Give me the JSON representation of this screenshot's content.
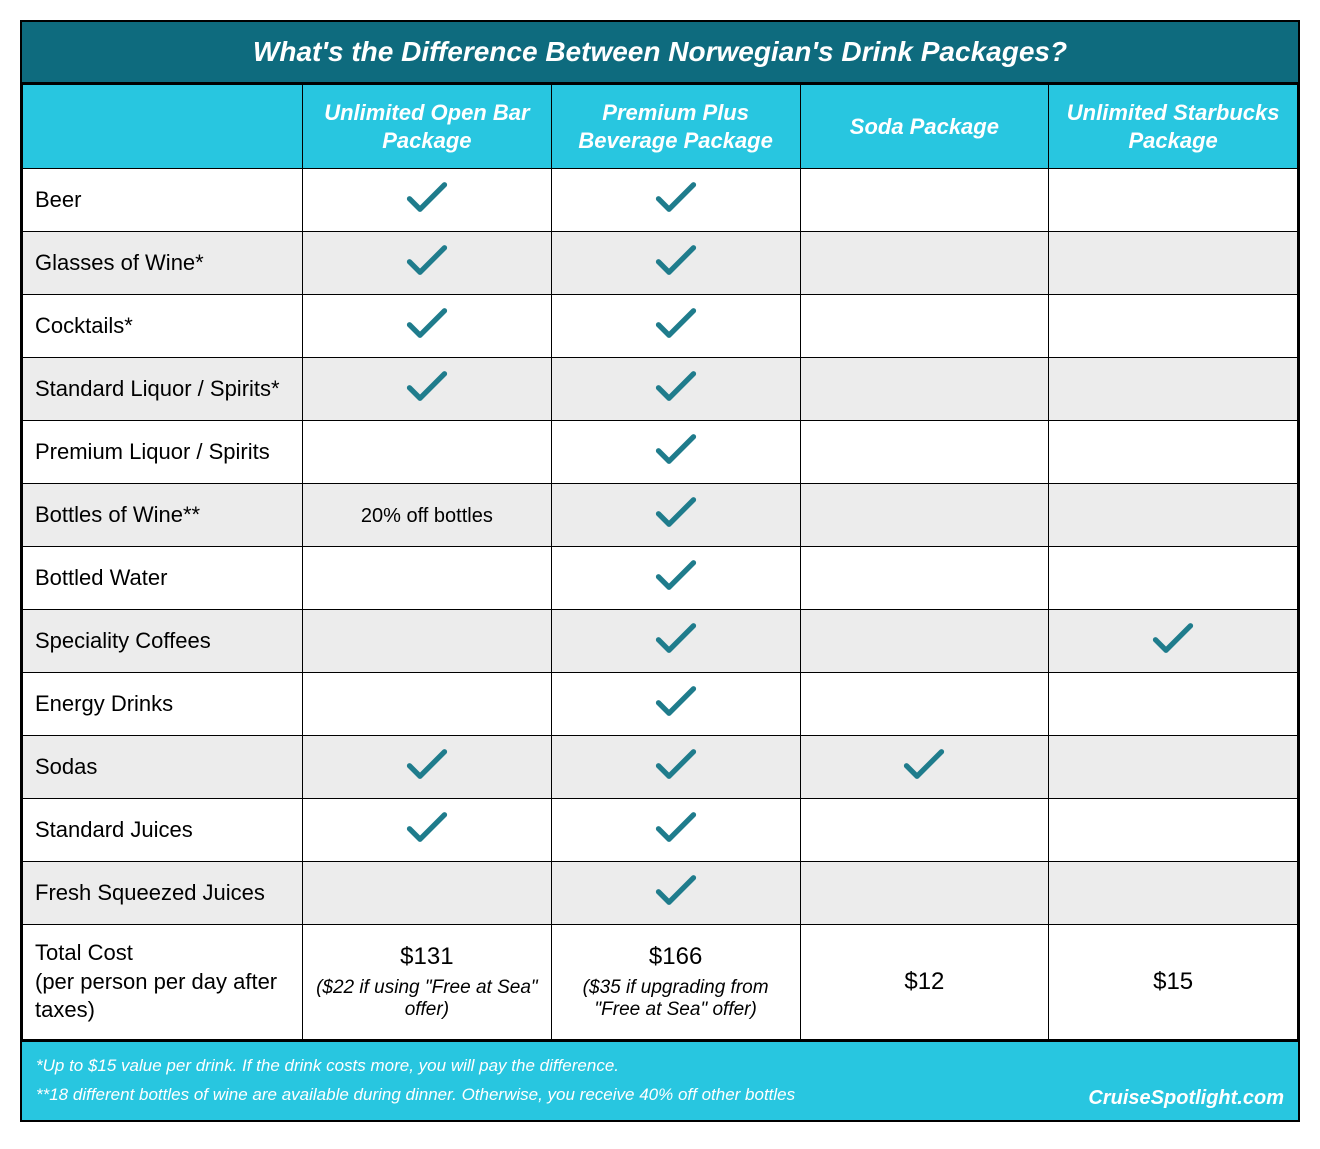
{
  "title": "What's the Difference Between Norwegian's Drink Packages?",
  "colors": {
    "title_bg": "#0e6b7e",
    "header_bg": "#28c6e0",
    "header_text": "#ffffff",
    "alt_row_bg": "#ececec",
    "check_color": "#1f7c8c",
    "border": "#000000"
  },
  "columns": [
    "Unlimited Open Bar Package",
    "Premium Plus Beverage Package",
    "Soda Package",
    "Unlimited Starbucks Package"
  ],
  "rows": [
    {
      "label": "Beer",
      "cells": [
        "check",
        "check",
        "",
        ""
      ]
    },
    {
      "label": "Glasses of Wine*",
      "cells": [
        "check",
        "check",
        "",
        ""
      ]
    },
    {
      "label": "Cocktails*",
      "cells": [
        "check",
        "check",
        "",
        ""
      ]
    },
    {
      "label": "Standard Liquor / Spirits*",
      "cells": [
        "check",
        "check",
        "",
        ""
      ]
    },
    {
      "label": "Premium Liquor / Spirits",
      "cells": [
        "",
        "check",
        "",
        ""
      ]
    },
    {
      "label": "Bottles of Wine**",
      "cells": [
        "20% off bottles",
        "check",
        "",
        ""
      ]
    },
    {
      "label": "Bottled Water",
      "cells": [
        "",
        "check",
        "",
        ""
      ]
    },
    {
      "label": "Speciality Coffees",
      "cells": [
        "",
        "check",
        "",
        "check"
      ]
    },
    {
      "label": "Energy Drinks",
      "cells": [
        "",
        "check",
        "",
        ""
      ]
    },
    {
      "label": "Sodas",
      "cells": [
        "check",
        "check",
        "check",
        ""
      ]
    },
    {
      "label": "Standard Juices",
      "cells": [
        "check",
        "check",
        "",
        ""
      ]
    },
    {
      "label": "Fresh Squeezed Juices",
      "cells": [
        "",
        "check",
        "",
        ""
      ]
    }
  ],
  "cost_row": {
    "label": "Total Cost\n(per person per day after taxes)",
    "cells": [
      {
        "main": "$131",
        "sub": "($22 if using \"Free at Sea\" offer)"
      },
      {
        "main": "$166",
        "sub": "($35 if upgrading from \"Free at Sea\" offer)"
      },
      {
        "main": "$12",
        "sub": ""
      },
      {
        "main": "$15",
        "sub": ""
      }
    ]
  },
  "footnotes": [
    "*Up to $15 value per drink. If the drink costs more, you will pay the difference.",
    "**18 different bottles of wine are available during dinner. Otherwise, you receive 40% off other bottles"
  ],
  "brand": "CruiseSpotlight.com"
}
